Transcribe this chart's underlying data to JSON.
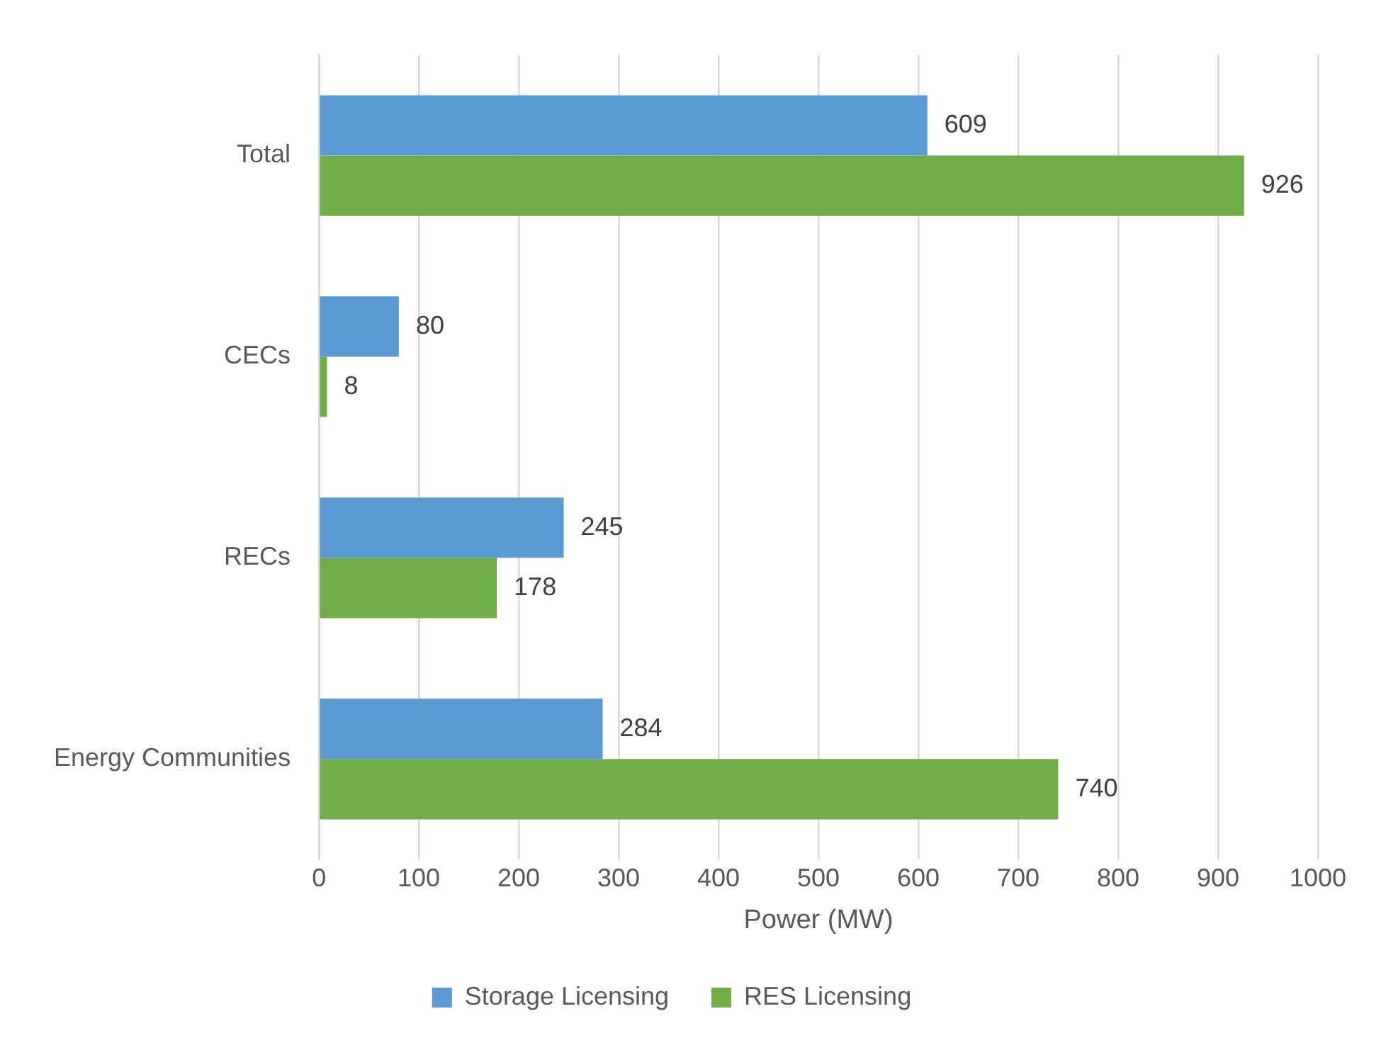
{
  "chart_data": {
    "type": "bar",
    "orientation": "horizontal",
    "xlabel": "Power (MW)",
    "categories": [
      "Total",
      "CECs",
      "RECs",
      "Energy Communities"
    ],
    "series": [
      {
        "name": "Storage Licensing",
        "color": "#5b9bd5",
        "values": [
          609,
          80,
          245,
          284
        ]
      },
      {
        "name": "RES Licensing",
        "color": "#70ad47",
        "values": [
          926,
          8,
          178,
          740
        ]
      }
    ],
    "xlim": [
      0,
      1000
    ],
    "xticks": [
      0,
      100,
      200,
      300,
      400,
      500,
      600,
      700,
      800,
      900,
      1000
    ],
    "grid": "x",
    "legend": "bottom",
    "data_labels": true
  }
}
